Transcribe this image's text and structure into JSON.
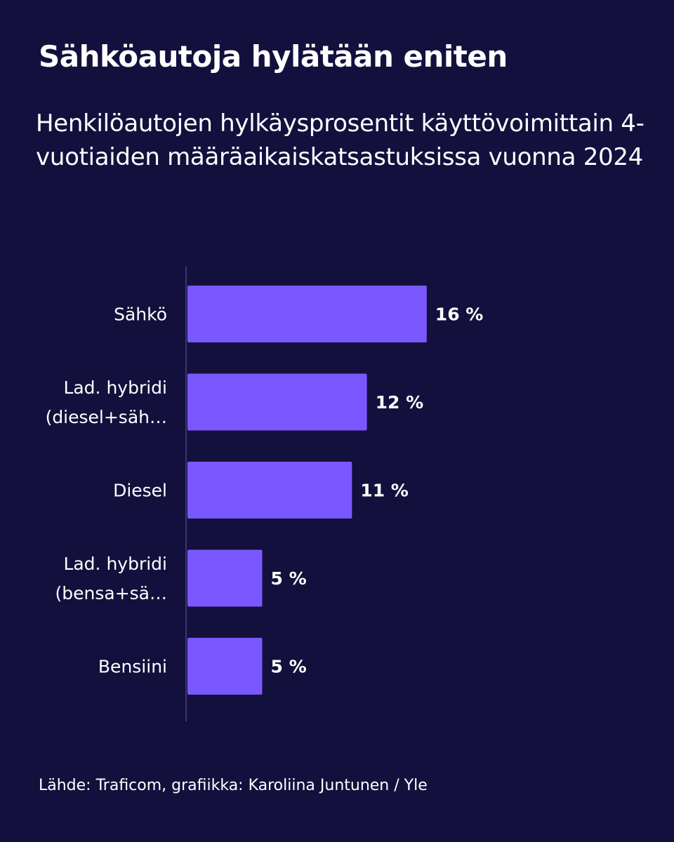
{
  "title": "Sähköautoja hylätään eniten",
  "subtitle": "Henkilöautojen hylkäysprosentit käyttövoimittain 4-vuotiaiden määräaikaiskatsastuksissa vuonna 2024",
  "footer": "Lähde: Traficom, grafiikka: Karoliina Juntunen / Yle",
  "colors": {
    "background": "#14103d",
    "bar": "#7b57ff",
    "axis": "#3b3570",
    "text": "#ffffff"
  },
  "chart_data": {
    "type": "bar",
    "orientation": "horizontal",
    "categories": [
      [
        "Sähkö"
      ],
      [
        "Lad. hybridi",
        "(diesel+säh…"
      ],
      [
        "Diesel"
      ],
      [
        "Lad. hybridi",
        "(bensa+sä…"
      ],
      [
        "Bensiini"
      ]
    ],
    "values": [
      16,
      12,
      11,
      5,
      5
    ],
    "value_labels": [
      "16 %",
      "12 %",
      "11 %",
      "5 %",
      "5 %"
    ],
    "unit": "%",
    "grid": false,
    "legend": "none"
  }
}
